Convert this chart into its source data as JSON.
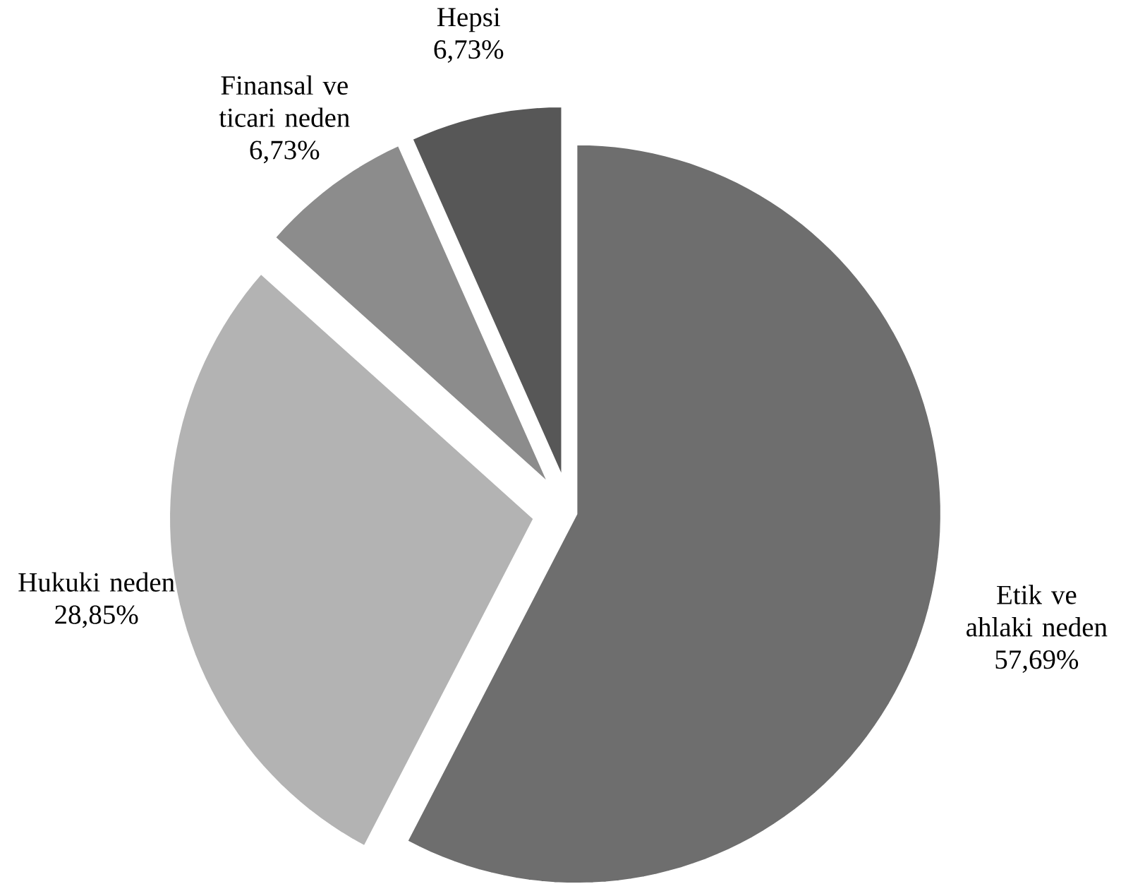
{
  "chart_data": {
    "type": "pie",
    "categories": [
      "Etik ve ahlaki neden",
      "Hukuki neden",
      "Finansal ve ticari neden",
      "Hepsi"
    ],
    "values": [
      57.69,
      28.85,
      6.73,
      6.73
    ],
    "value_labels": [
      "57,69%",
      "28,85%",
      "6,73%",
      "6,73%"
    ],
    "colors": [
      "#6e6e6e",
      "#b3b3b3",
      "#8c8c8c",
      "#575757"
    ]
  }
}
